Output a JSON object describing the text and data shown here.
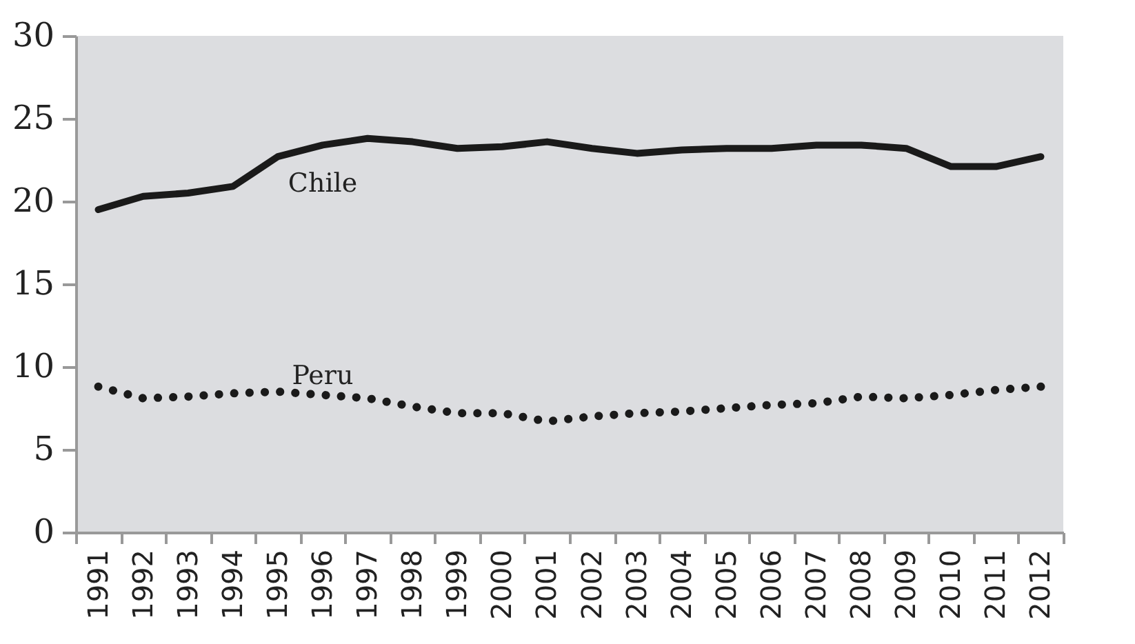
{
  "chart_data": {
    "type": "line",
    "categories": [
      "1991",
      "1992",
      "1993",
      "1994",
      "1995",
      "1996",
      "1997",
      "1998",
      "1999",
      "2000",
      "2001",
      "2002",
      "2003",
      "2004",
      "2005",
      "2006",
      "2007",
      "2008",
      "2009",
      "2010",
      "2011",
      "2012"
    ],
    "series": [
      {
        "name": "Chile",
        "color": "#1a1a1a",
        "line_style": "solid",
        "values": [
          19.5,
          20.3,
          20.5,
          20.9,
          22.7,
          23.4,
          23.8,
          23.6,
          23.2,
          23.3,
          23.6,
          23.2,
          22.9,
          23.1,
          23.2,
          23.2,
          23.4,
          23.4,
          23.2,
          22.1,
          22.1,
          22.7
        ]
      },
      {
        "name": "Peru",
        "color": "#1a1a1a",
        "line_style": "dotted",
        "values": [
          8.8,
          8.1,
          8.2,
          8.4,
          8.5,
          8.3,
          8.1,
          7.6,
          7.2,
          7.2,
          6.7,
          7.0,
          7.2,
          7.3,
          7.5,
          7.7,
          7.8,
          8.2,
          8.1,
          8.3,
          8.6,
          8.8
        ]
      }
    ],
    "ylim": [
      0,
      30
    ],
    "yticks": [
      0,
      5,
      10,
      15,
      20,
      25,
      30
    ],
    "grid": false
  }
}
